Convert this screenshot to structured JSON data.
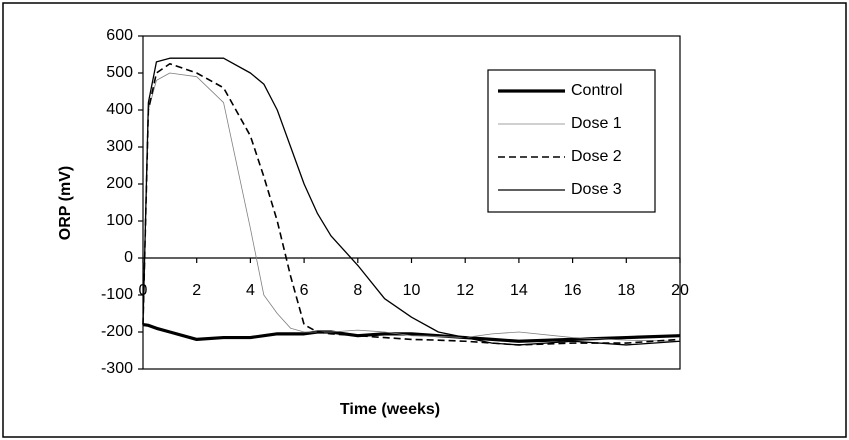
{
  "chart_data": {
    "type": "line",
    "x_label": "Time (weeks)",
    "y_label": "ORP (mV)",
    "x": [
      0,
      0.2,
      0.5,
      1,
      2,
      3,
      4,
      4.5,
      5,
      5.5,
      6,
      6.5,
      7,
      8,
      9,
      10,
      11,
      12,
      13,
      14,
      16,
      18,
      20
    ],
    "series": [
      {
        "name": "Control",
        "color": "#000000",
        "values": [
          -180,
          -182,
          -190,
          -200,
          -220,
          -215,
          -215,
          -210,
          -205,
          -205,
          -205,
          -200,
          -200,
          -210,
          -205,
          -205,
          -210,
          -215,
          -220,
          -225,
          -220,
          -215,
          -210
        ]
      },
      {
        "name": "Dose 1",
        "color": "#808080",
        "values": [
          -180,
          400,
          480,
          500,
          490,
          420,
          80,
          -100,
          -150,
          -190,
          -200,
          -200,
          -200,
          -195,
          -200,
          -210,
          -212,
          -215,
          -205,
          -200,
          -215,
          -222,
          -225
        ]
      },
      {
        "name": "Dose 2",
        "color": "#000000",
        "values": [
          -180,
          400,
          500,
          525,
          500,
          460,
          330,
          220,
          100,
          -50,
          -180,
          -200,
          -205,
          -210,
          -215,
          -220,
          -222,
          -225,
          -230,
          -235,
          -230,
          -230,
          -220
        ]
      },
      {
        "name": "Dose 3",
        "color": "#000000",
        "values": [
          -180,
          420,
          530,
          540,
          540,
          540,
          500,
          470,
          400,
          300,
          200,
          120,
          60,
          -20,
          -110,
          -160,
          -200,
          -215,
          -230,
          -235,
          -225,
          -235,
          -225
        ]
      }
    ],
    "xlim": [
      0,
      20
    ],
    "xticks": [
      0,
      2,
      4,
      6,
      8,
      10,
      12,
      14,
      16,
      18,
      20
    ],
    "ylim": [
      -300,
      600
    ],
    "yticks": [
      -300,
      -200,
      -100,
      0,
      100,
      200,
      300,
      400,
      500,
      600
    ]
  }
}
